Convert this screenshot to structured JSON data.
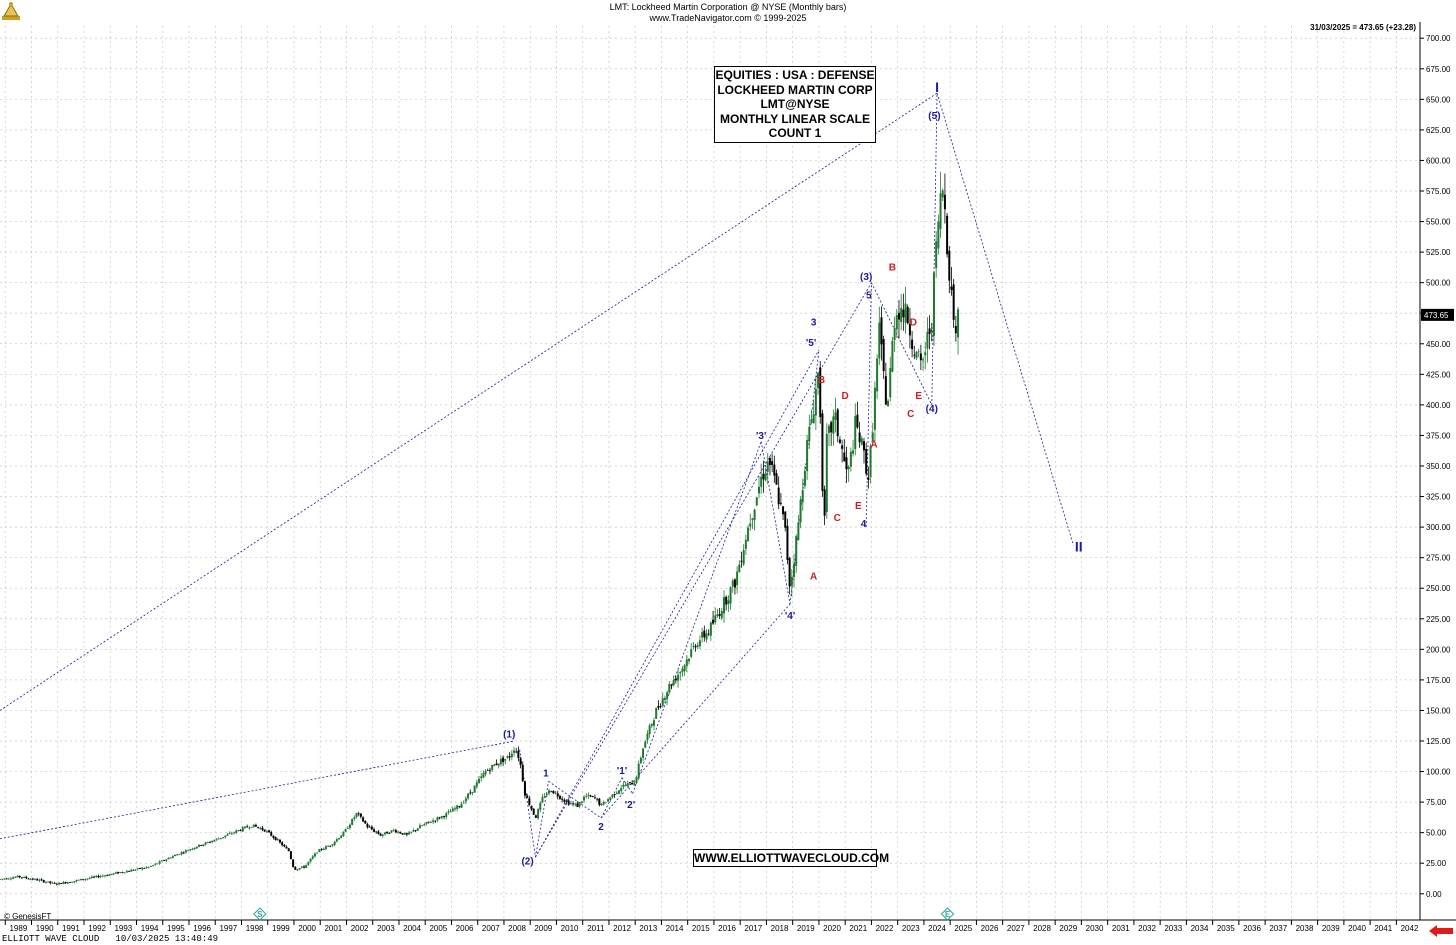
{
  "header": {
    "line1": "LMT:  Lockheed Martin Corporation @ NYSE  (Monthly bars)",
    "line2": "www.TradeNavigator.com © 1999-2025"
  },
  "last_info": "31/03/2025 = 473.65 (+23.28)",
  "price_tag": "473.65",
  "info_box": [
    "EQUITIES : USA : DEFENSE",
    "LOCKHEED MARTIN CORP",
    "LMT@NYSE",
    "MONTHLY LINEAR SCALE",
    "COUNT 1"
  ],
  "website": "WWW.ELLIOTTWAVECLOUD.COM",
  "footer": "ELLIOTT WAVE CLOUD   10/03/2025 13:40:49",
  "genesis": "© GenesisFT",
  "colors": {
    "wave_blue": "#1a1a9c",
    "wave_red": "#cc1f1f",
    "up_bar": "#1e7a2e",
    "down_bar": "#000000",
    "grid": "#c8c8c8"
  },
  "chart_data": {
    "type": "candlestick",
    "title": "LMT:  Lockheed Martin Corporation @ NYSE  (Monthly bars)",
    "xlabel": "",
    "ylabel": "",
    "xlim": [
      1988.8,
      2042.9
    ],
    "ylim": [
      -10,
      710
    ],
    "y_ticks": [
      0,
      25,
      50,
      75,
      100,
      125,
      150,
      175,
      200,
      225,
      250,
      275,
      300,
      325,
      350,
      375,
      400,
      425,
      450,
      475,
      500,
      525,
      550,
      575,
      600,
      625,
      650,
      675,
      700
    ],
    "y_tick_labels": [
      "0.00",
      "25.00",
      "50.00",
      "75.00",
      "100.00",
      "125.00",
      "150.00",
      "175.00",
      "200.00",
      "225.00",
      "250.00",
      "275.00",
      "300.00",
      "325.00",
      "350.00",
      "375.00",
      "400.00",
      "425.00",
      "450.00",
      "475.00",
      "500.00",
      "525.00",
      "550.00",
      "575.00",
      "600.00",
      "625.00",
      "650.00",
      "675.00",
      "700.00"
    ],
    "x_ticks": [
      "1989",
      "1990",
      "1991",
      "1992",
      "1993",
      "1994",
      "1995",
      "1996",
      "1997",
      "1998",
      "1999",
      "2000",
      "2001",
      "2002",
      "2003",
      "2004",
      "2005",
      "2006",
      "2007",
      "2008",
      "2009",
      "2010",
      "2011",
      "2012",
      "2013",
      "2014",
      "2015",
      "2016",
      "2017",
      "2018",
      "2019",
      "2020",
      "2021",
      "2022",
      "2023",
      "2024",
      "2025",
      "2026",
      "2027",
      "2028",
      "2029",
      "2030",
      "2031",
      "2032",
      "2033",
      "2034",
      "2035",
      "2036",
      "2037",
      "2038",
      "2039",
      "2040",
      "2041",
      "2042"
    ],
    "grid": true,
    "price_path": [
      [
        1988.8,
        12
      ],
      [
        1989.5,
        14
      ],
      [
        1990.3,
        11
      ],
      [
        1990.9,
        8
      ],
      [
        1991.5,
        10
      ],
      [
        1992.5,
        14
      ],
      [
        1993.5,
        18
      ],
      [
        1994.5,
        22
      ],
      [
        1995.3,
        30
      ],
      [
        1996.2,
        38
      ],
      [
        1997.1,
        45
      ],
      [
        1997.9,
        52
      ],
      [
        1998.4,
        56
      ],
      [
        1998.9,
        52
      ],
      [
        1999.3,
        45
      ],
      [
        1999.8,
        35
      ],
      [
        2000.0,
        20
      ],
      [
        2000.4,
        22
      ],
      [
        2000.9,
        35
      ],
      [
        2001.4,
        40
      ],
      [
        2001.9,
        50
      ],
      [
        2002.4,
        66
      ],
      [
        2002.8,
        55
      ],
      [
        2003.3,
        48
      ],
      [
        2003.8,
        52
      ],
      [
        2004.3,
        48
      ],
      [
        2004.8,
        55
      ],
      [
        2005.3,
        60
      ],
      [
        2005.8,
        65
      ],
      [
        2006.3,
        72
      ],
      [
        2006.8,
        85
      ],
      [
        2007.3,
        100
      ],
      [
        2007.8,
        108
      ],
      [
        2008.2,
        112
      ],
      [
        2008.4,
        120
      ],
      [
        2008.6,
        110
      ],
      [
        2008.8,
        82
      ],
      [
        2009.0,
        72
      ],
      [
        2009.2,
        62
      ],
      [
        2009.5,
        80
      ],
      [
        2009.8,
        85
      ],
      [
        2010.1,
        80
      ],
      [
        2010.4,
        75
      ],
      [
        2010.8,
        72
      ],
      [
        2011.1,
        80
      ],
      [
        2011.5,
        78
      ],
      [
        2011.7,
        72
      ],
      [
        2012.1,
        80
      ],
      [
        2012.5,
        88
      ],
      [
        2012.8,
        90
      ],
      [
        2013.0,
        92
      ],
      [
        2013.3,
        120
      ],
      [
        2013.8,
        150
      ],
      [
        2014.3,
        170
      ],
      [
        2014.8,
        185
      ],
      [
        2015.3,
        205
      ],
      [
        2015.8,
        215
      ],
      [
        2016.3,
        235
      ],
      [
        2016.8,
        255
      ],
      [
        2017.3,
        300
      ],
      [
        2017.8,
        340
      ],
      [
        2018.1,
        355
      ],
      [
        2018.4,
        330
      ],
      [
        2018.7,
        300
      ],
      [
        2018.9,
        250
      ],
      [
        2019.2,
        300
      ],
      [
        2019.5,
        360
      ],
      [
        2019.8,
        400
      ],
      [
        2020.0,
        430
      ],
      [
        2020.2,
        290
      ],
      [
        2020.3,
        370
      ],
      [
        2020.6,
        390
      ],
      [
        2020.9,
        360
      ],
      [
        2021.1,
        340
      ],
      [
        2021.4,
        385
      ],
      [
        2021.7,
        360
      ],
      [
        2021.9,
        340
      ],
      [
        2022.1,
        400
      ],
      [
        2022.3,
        460
      ],
      [
        2022.6,
        395
      ],
      [
        2022.9,
        475
      ],
      [
        2023.1,
        480
      ],
      [
        2023.4,
        470
      ],
      [
        2023.7,
        440
      ],
      [
        2023.9,
        430
      ],
      [
        2024.1,
        450
      ],
      [
        2024.3,
        470
      ],
      [
        2024.5,
        540
      ],
      [
        2024.7,
        580
      ],
      [
        2024.8,
        560
      ],
      [
        2025.0,
        500
      ],
      [
        2025.15,
        470
      ],
      [
        2025.25,
        455
      ],
      [
        2025.3,
        473.65
      ]
    ],
    "trendlines": [
      {
        "points": [
          [
            1988.8,
            150
          ],
          [
            2024.5,
            655
          ]
        ]
      },
      {
        "points": [
          [
            1988.8,
            45
          ],
          [
            2008.4,
            125
          ]
        ]
      },
      {
        "points": [
          [
            2008.6,
            118
          ],
          [
            2009.2,
            30
          ]
        ]
      },
      {
        "points": [
          [
            2009.2,
            30
          ],
          [
            2009.7,
            92
          ]
        ]
      },
      {
        "points": [
          [
            2009.7,
            92
          ],
          [
            2011.7,
            62
          ]
        ]
      },
      {
        "points": [
          [
            2011.7,
            62
          ],
          [
            2012.5,
            95
          ]
        ]
      },
      {
        "points": [
          [
            2012.5,
            95
          ],
          [
            2012.9,
            82
          ]
        ]
      },
      {
        "points": [
          [
            2012.9,
            82
          ],
          [
            2017.8,
            370
          ]
        ]
      },
      {
        "points": [
          [
            2009.2,
            30
          ],
          [
            2022.0,
            500
          ]
        ]
      },
      {
        "points": [
          [
            2009.2,
            30
          ],
          [
            2020.0,
            445
          ]
        ]
      },
      {
        "points": [
          [
            2011.7,
            62
          ],
          [
            2018.9,
            237
          ]
        ]
      },
      {
        "points": [
          [
            2017.8,
            370
          ],
          [
            2018.9,
            237
          ]
        ]
      },
      {
        "points": [
          [
            2018.9,
            237
          ],
          [
            2020.0,
            445
          ]
        ]
      },
      {
        "points": [
          [
            2021.8,
            300
          ],
          [
            2022.0,
            500
          ]
        ]
      },
      {
        "points": [
          [
            2022.0,
            500
          ],
          [
            2024.3,
            400
          ]
        ]
      },
      {
        "points": [
          [
            2024.3,
            400
          ],
          [
            2024.5,
            655
          ]
        ]
      },
      {
        "points": [
          [
            2024.5,
            655
          ],
          [
            2029.7,
            285
          ]
        ]
      }
    ],
    "wave_labels": [
      {
        "text": "I",
        "x": 2024.5,
        "y": 656,
        "color": "blue",
        "big": true
      },
      {
        "text": "(5)",
        "x": 2024.4,
        "y": 634,
        "color": "blue"
      },
      {
        "text": "(1)",
        "x": 2008.2,
        "y": 128,
        "color": "blue"
      },
      {
        "text": "1",
        "x": 2009.6,
        "y": 96,
        "color": "blue"
      },
      {
        "text": "(2)",
        "x": 2008.9,
        "y": 24,
        "color": "blue"
      },
      {
        "text": "2",
        "x": 2011.7,
        "y": 52,
        "color": "blue"
      },
      {
        "text": "'1'",
        "x": 2012.5,
        "y": 98,
        "color": "blue"
      },
      {
        "text": "'2'",
        "x": 2012.8,
        "y": 70,
        "color": "blue"
      },
      {
        "text": "'3'",
        "x": 2017.8,
        "y": 372,
        "color": "blue"
      },
      {
        "text": "'4'",
        "x": 2018.9,
        "y": 225,
        "color": "blue"
      },
      {
        "text": "3",
        "x": 2019.8,
        "y": 465,
        "color": "blue"
      },
      {
        "text": "'5'",
        "x": 2019.7,
        "y": 448,
        "color": "blue"
      },
      {
        "text": "(3)",
        "x": 2021.8,
        "y": 502,
        "color": "blue"
      },
      {
        "text": "5",
        "x": 2021.9,
        "y": 487,
        "color": "blue"
      },
      {
        "text": "4",
        "x": 2021.7,
        "y": 300,
        "color": "blue"
      },
      {
        "text": "(4)",
        "x": 2024.3,
        "y": 394,
        "color": "blue"
      },
      {
        "text": "II",
        "x": 2029.9,
        "y": 280,
        "color": "blue",
        "big": true
      },
      {
        "text": "A",
        "x": 2019.8,
        "y": 257,
        "color": "red"
      },
      {
        "text": "B",
        "x": 2020.1,
        "y": 418,
        "color": "red"
      },
      {
        "text": "C",
        "x": 2020.7,
        "y": 305,
        "color": "red"
      },
      {
        "text": "D",
        "x": 2021.0,
        "y": 405,
        "color": "red"
      },
      {
        "text": "E",
        "x": 2021.5,
        "y": 315,
        "color": "red"
      },
      {
        "text": "A",
        "x": 2022.1,
        "y": 365,
        "color": "red"
      },
      {
        "text": "B",
        "x": 2022.8,
        "y": 510,
        "color": "red"
      },
      {
        "text": "D",
        "x": 2023.6,
        "y": 465,
        "color": "red"
      },
      {
        "text": "E",
        "x": 2023.8,
        "y": 405,
        "color": "red"
      },
      {
        "text": "C",
        "x": 2023.5,
        "y": 390,
        "color": "red"
      }
    ],
    "markers": [
      {
        "text": "S",
        "x": 1998.7
      },
      {
        "text": "E",
        "x": 2024.9
      }
    ]
  }
}
